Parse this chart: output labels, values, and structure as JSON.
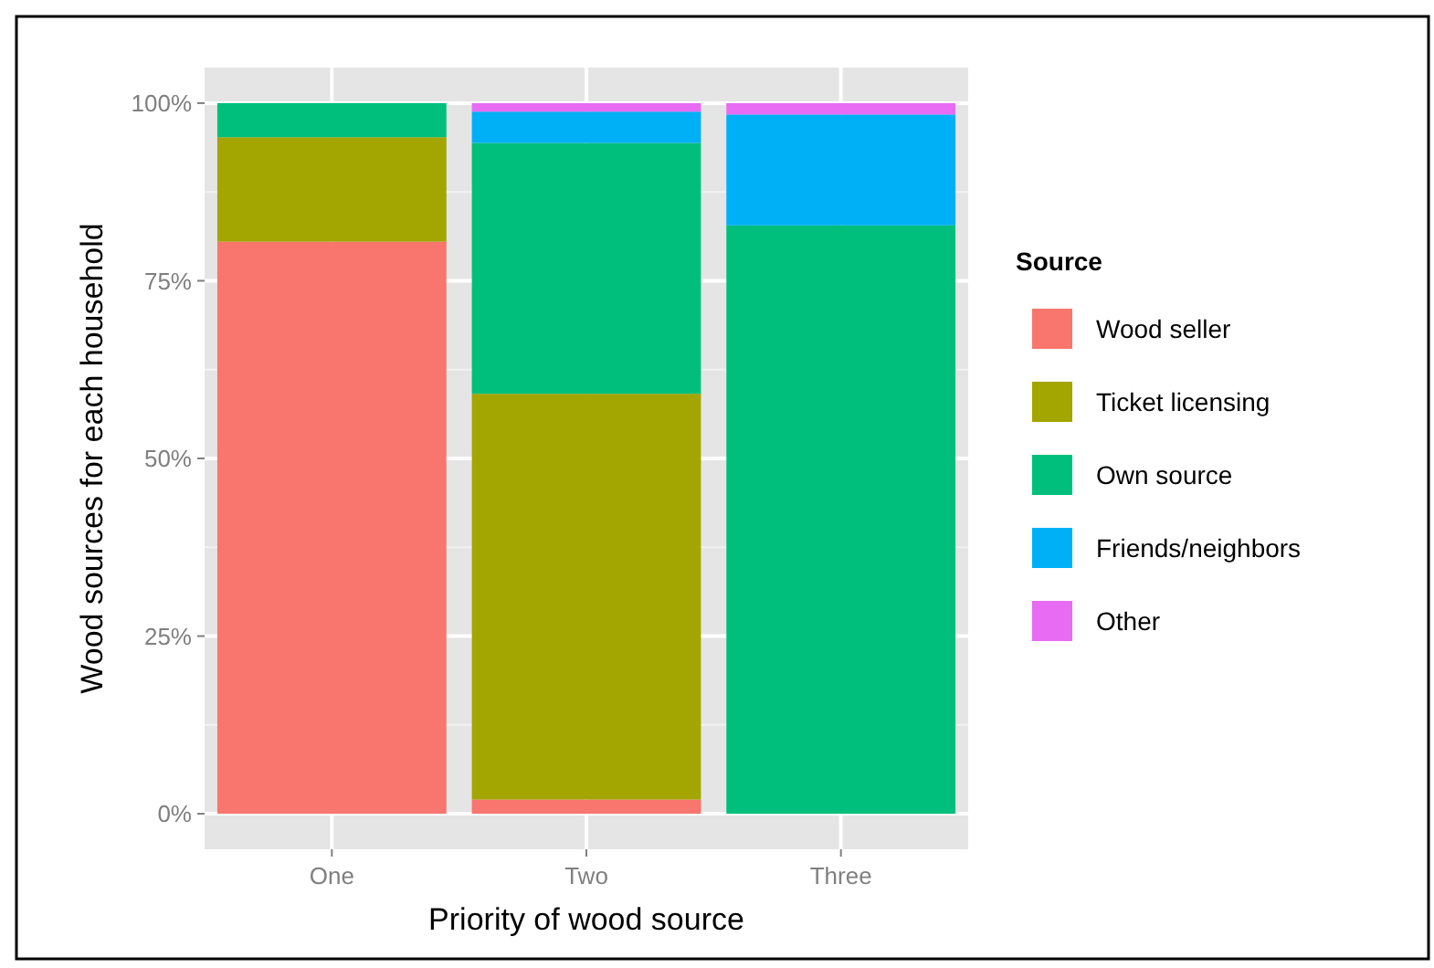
{
  "chart_data": {
    "type": "bar",
    "stacked": true,
    "xlabel": "Priority of wood source",
    "ylabel": "Wood sources for each household",
    "legend_title": "Source",
    "legend": "right",
    "categories": [
      "One",
      "Two",
      "Three"
    ],
    "series": [
      {
        "name": "Wood seller",
        "color": "#f8766d",
        "values": [
          80.5,
          2.0,
          0
        ]
      },
      {
        "name": "Ticket licensing",
        "color": "#a3a500",
        "values": [
          14.7,
          57.1,
          0
        ]
      },
      {
        "name": "Own source",
        "color": "#00bf7d",
        "values": [
          4.8,
          35.3,
          82.8
        ]
      },
      {
        "name": "Friends/neighbors",
        "color": "#00b0f6",
        "values": [
          0,
          4.4,
          15.6
        ]
      },
      {
        "name": "Other",
        "color": "#e76bf3",
        "values": [
          0,
          1.2,
          1.6
        ]
      }
    ],
    "ylim": [
      -5,
      105
    ],
    "yticks": [
      {
        "value": 0,
        "label": "0%"
      },
      {
        "value": 25,
        "label": "25%"
      },
      {
        "value": 50,
        "label": "50%"
      },
      {
        "value": 75,
        "label": "75%"
      },
      {
        "value": 100,
        "label": "100%"
      }
    ],
    "grid": true
  }
}
